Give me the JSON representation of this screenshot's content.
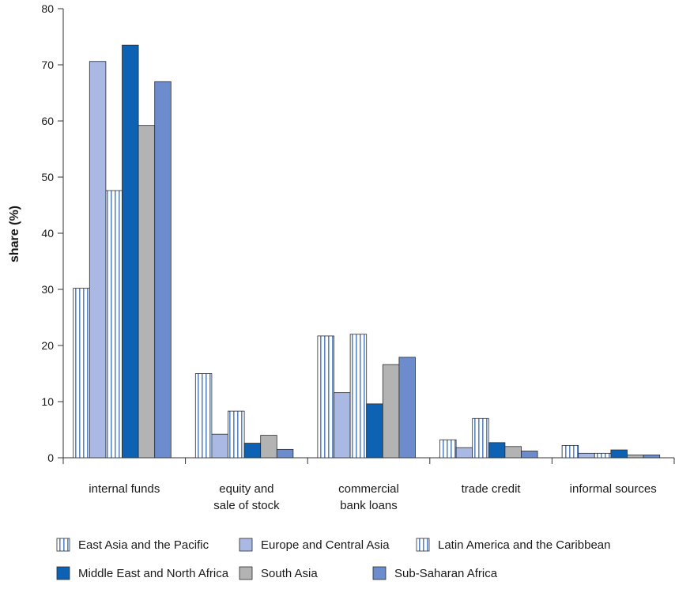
{
  "chart_data": {
    "type": "bar",
    "ylabel": "share (%)",
    "ylim": [
      0,
      80
    ],
    "yticks": [
      0,
      10,
      20,
      30,
      40,
      50,
      60,
      70,
      80
    ],
    "categories": [
      [
        "internal funds"
      ],
      [
        "equity and",
        "sale of stock"
      ],
      [
        "commercial",
        "bank loans"
      ],
      [
        "trade credit"
      ],
      [
        "informal sources"
      ]
    ],
    "series": [
      {
        "name": "East Asia and the Pacific",
        "color": "#ffffff",
        "stripe": "#5b86c5",
        "values": [
          30.2,
          15.0,
          21.7,
          3.2,
          2.2
        ]
      },
      {
        "name": "Europe and Central Asia",
        "color": "#a9b9e3",
        "values": [
          70.6,
          4.2,
          11.6,
          1.8,
          0.8
        ]
      },
      {
        "name": "Latin America and the Caribbean",
        "color": "#ffffff",
        "stripe": "#5b86c5",
        "values": [
          47.6,
          8.3,
          22.0,
          7.0,
          0.8
        ]
      },
      {
        "name": "Middle East and North Africa",
        "color": "#0d62b4",
        "values": [
          73.5,
          2.6,
          9.6,
          2.7,
          1.4
        ]
      },
      {
        "name": "South Asia",
        "color": "#b3b3b3",
        "values": [
          59.2,
          4.0,
          16.6,
          2.0,
          0.5
        ]
      },
      {
        "name": "Sub-Saharan Africa",
        "color": "#6d8ccd",
        "values": [
          67.0,
          1.5,
          17.9,
          1.2,
          0.5
        ]
      }
    ],
    "grid": false,
    "legend_position": "bottom"
  }
}
